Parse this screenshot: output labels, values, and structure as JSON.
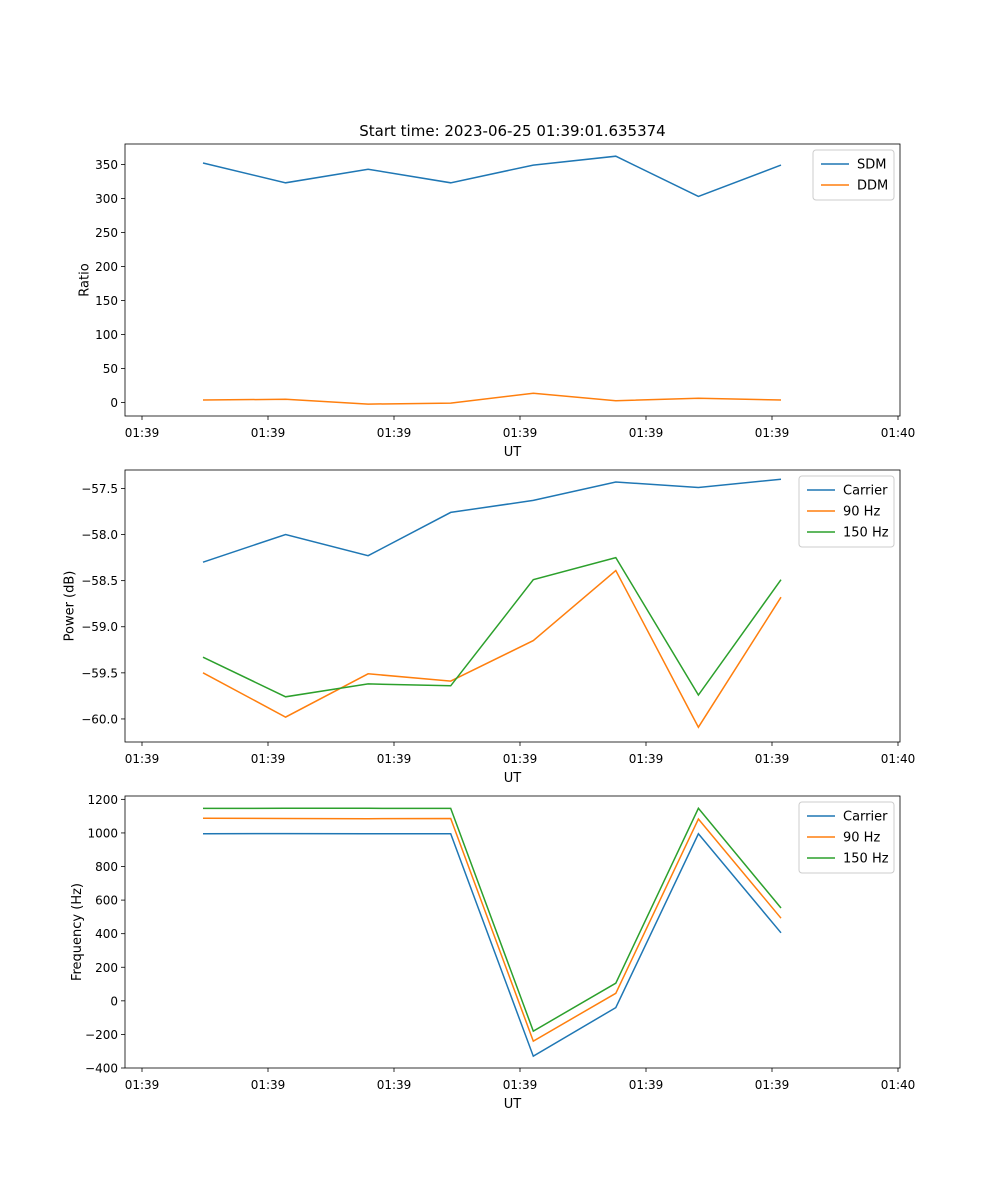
{
  "title": "Start time: 2023-06-25 01:39:01.635374",
  "colors": {
    "c0": "#1f77b4",
    "c1": "#ff7f0e",
    "c2": "#2ca02c"
  },
  "chart_data": [
    {
      "type": "line",
      "title": "Start time: 2023-06-25 01:39:01.635374",
      "xlabel": "UT",
      "ylabel": "Ratio",
      "xticklabels": [
        "01:39",
        "01:39",
        "01:39",
        "01:39",
        "01:39",
        "01:39",
        "01:40"
      ],
      "ylim": [
        -20,
        380
      ],
      "yticks": [
        0,
        50,
        100,
        150,
        200,
        250,
        300,
        350
      ],
      "yticklabels": [
        "0",
        "50",
        "100",
        "150",
        "200",
        "250",
        "300",
        "350"
      ],
      "legend": "top-right",
      "grid": false,
      "series": [
        {
          "name": "SDM",
          "color": "#1f77b4",
          "values": [
            352,
            323,
            343,
            323,
            349,
            362,
            303,
            349
          ]
        },
        {
          "name": "DDM",
          "color": "#ff7f0e",
          "values": [
            3.5,
            4.5,
            -2.5,
            -1.0,
            13.5,
            2.5,
            6.0,
            3.5
          ]
        }
      ]
    },
    {
      "type": "line",
      "title": "",
      "xlabel": "UT",
      "ylabel": "Power (dB)",
      "xticklabels": [
        "01:39",
        "01:39",
        "01:39",
        "01:39",
        "01:39",
        "01:39",
        "01:40"
      ],
      "ylim": [
        -60.25,
        -57.3
      ],
      "yticks": [
        -60.0,
        -59.5,
        -59.0,
        -58.5,
        -58.0,
        -57.5
      ],
      "yticklabels": [
        "−60.0",
        "−59.5",
        "−59.0",
        "−58.5",
        "−58.0",
        "−57.5"
      ],
      "legend": "top-right",
      "grid": false,
      "series": [
        {
          "name": "Carrier",
          "color": "#1f77b4",
          "values": [
            -58.3,
            -58.0,
            -58.23,
            -57.76,
            -57.63,
            -57.43,
            -57.49,
            -57.4
          ]
        },
        {
          "name": "90 Hz",
          "color": "#ff7f0e",
          "values": [
            -59.5,
            -59.98,
            -59.51,
            -59.59,
            -59.15,
            -58.39,
            -60.09,
            -58.68
          ]
        },
        {
          "name": "150 Hz",
          "color": "#2ca02c",
          "values": [
            -59.33,
            -59.76,
            -59.62,
            -59.64,
            -58.49,
            -58.25,
            -59.74,
            -58.49
          ]
        }
      ]
    },
    {
      "type": "line",
      "title": "",
      "xlabel": "UT",
      "ylabel": "Frequency (Hz)",
      "xticklabels": [
        "01:39",
        "01:39",
        "01:39",
        "01:39",
        "01:39",
        "01:39",
        "01:40"
      ],
      "ylim": [
        -400,
        1220
      ],
      "yticks": [
        -400,
        -200,
        0,
        200,
        400,
        600,
        800,
        1000,
        1200
      ],
      "yticklabels": [
        "−400",
        "−200",
        "0",
        "200",
        "400",
        "600",
        "800",
        "1000",
        "1200"
      ],
      "legend": "top-right",
      "grid": false,
      "series": [
        {
          "name": "Carrier",
          "color": "#1f77b4",
          "values": [
            995,
            996,
            995,
            995,
            -330,
            -40,
            995,
            405
          ]
        },
        {
          "name": "90 Hz",
          "color": "#ff7f0e",
          "values": [
            1087,
            1086,
            1085,
            1086,
            -240,
            45,
            1083,
            492
          ]
        },
        {
          "name": "150 Hz",
          "color": "#2ca02c",
          "values": [
            1146,
            1147,
            1147,
            1146,
            -180,
            105,
            1147,
            553
          ]
        }
      ]
    }
  ]
}
